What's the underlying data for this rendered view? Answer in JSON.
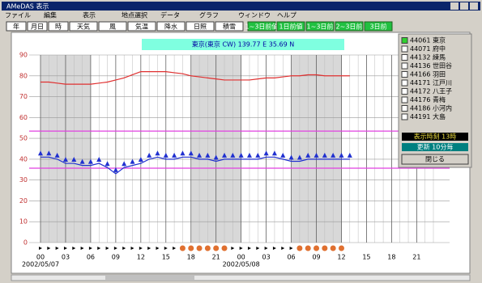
{
  "window": {
    "title": "AMeDAS 表示"
  },
  "menu": [
    "ファイル",
    "編集",
    "表示",
    "地点選択",
    "データ",
    "グラフ",
    "ウィンドウ",
    "ヘルプ"
  ],
  "toolbar": [
    "年",
    "月日",
    "時",
    "天気",
    "風",
    "気温",
    "降水",
    "日照",
    "積雪"
  ],
  "toolbar_green": [
    "1~3日前値",
    "1日前値",
    "1~3日前",
    "2~3日前",
    "3日前"
  ],
  "banner": "東京(東京 CW) 139.77 E  35.69 N",
  "stations": [
    "44061 東京",
    "44071 府中",
    "44132 練馬",
    "44136 世田谷",
    "44166 羽田",
    "44171 江戸川",
    "44172 八王子",
    "44176 青梅",
    "44186 小河内",
    "44191 大島"
  ],
  "status": [
    "表示時刻 13時",
    "更新 10分毎"
  ],
  "close_button": "閉じる",
  "dates": [
    "2002/05/07",
    "2002/05/08"
  ],
  "chart_data": {
    "type": "line",
    "x": [
      0,
      1,
      2,
      3,
      4,
      5,
      6,
      7,
      8,
      9,
      10,
      11,
      12,
      13,
      14,
      15,
      16,
      17,
      18,
      19,
      20,
      21,
      22,
      23,
      24,
      25,
      26,
      27,
      28,
      29,
      30,
      31,
      32,
      33,
      34,
      35,
      36,
      37
    ],
    "series": [
      {
        "color": "#e03030",
        "values": [
          77,
          77,
          76.5,
          76,
          76,
          76,
          76,
          76.5,
          77,
          78,
          79,
          80.5,
          82,
          82,
          82,
          82,
          81.5,
          81,
          80,
          79.5,
          79,
          78.5,
          78,
          78,
          78,
          78,
          78.5,
          79,
          79,
          79.5,
          80,
          80,
          80.5,
          80.5,
          80,
          80,
          80,
          80
        ]
      },
      {
        "color": "#2030d0",
        "markers": true,
        "values": [
          41,
          41,
          40,
          38,
          38,
          37,
          37,
          38,
          36,
          33,
          36,
          37,
          38,
          40,
          41,
          40,
          40,
          41,
          41,
          40,
          40,
          39,
          40,
          40,
          40,
          40,
          40,
          41,
          41,
          40,
          39,
          39,
          40,
          40,
          40,
          40,
          40,
          40
        ]
      }
    ],
    "reference_lines": [
      {
        "value": 53.5,
        "color": "#e040e0"
      },
      {
        "value": 35.7,
        "color": "#e040e0"
      }
    ],
    "xlim": [
      0,
      47
    ],
    "xticks": [
      {
        "value": 0,
        "label": "00"
      },
      {
        "value": 3,
        "label": "03"
      },
      {
        "value": 6,
        "label": "06"
      },
      {
        "value": 9,
        "label": "09"
      },
      12,
      15,
      18,
      21,
      {
        "value": 24,
        "label": "00"
      },
      {
        "value": 27,
        "label": "03"
      },
      {
        "value": 30,
        "label": "06"
      },
      {
        "value": 33,
        "label": "09"
      },
      {
        "value": 36,
        "label": "12"
      },
      {
        "value": 39,
        "label": "15"
      },
      {
        "value": 42,
        "label": "18"
      },
      {
        "value": 45,
        "label": "21"
      }
    ],
    "ylim": [
      0,
      90
    ],
    "yticks": [
      0,
      10,
      20,
      30,
      40,
      50,
      60,
      70,
      80,
      90
    ],
    "grid": true
  }
}
